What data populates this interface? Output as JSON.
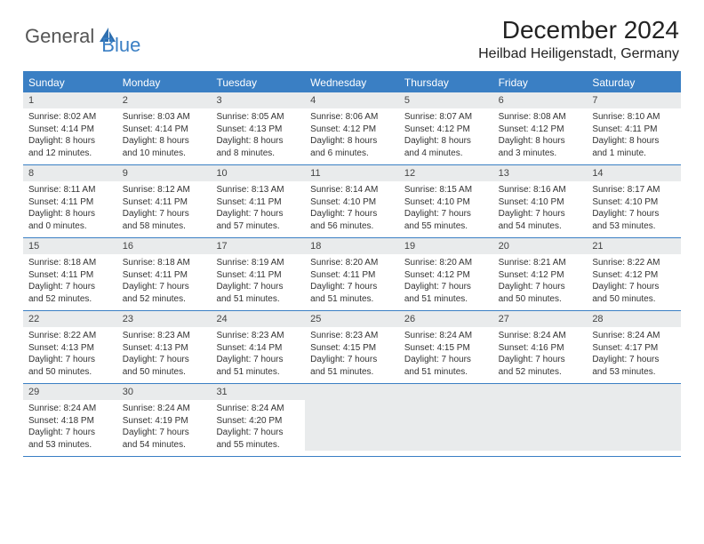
{
  "brand": {
    "part1": "General",
    "part2": "Blue"
  },
  "title": "December 2024",
  "location": "Heilbad Heiligenstadt, Germany",
  "colors": {
    "accent": "#3a7fc4",
    "header_bg": "#3a7fc4",
    "daynum_bg": "#e9ebec",
    "text": "#333333",
    "background": "#ffffff"
  },
  "dow": [
    "Sunday",
    "Monday",
    "Tuesday",
    "Wednesday",
    "Thursday",
    "Friday",
    "Saturday"
  ],
  "weeks": [
    [
      {
        "n": "1",
        "sr": "Sunrise: 8:02 AM",
        "ss": "Sunset: 4:14 PM",
        "dl": "Daylight: 8 hours and 12 minutes."
      },
      {
        "n": "2",
        "sr": "Sunrise: 8:03 AM",
        "ss": "Sunset: 4:14 PM",
        "dl": "Daylight: 8 hours and 10 minutes."
      },
      {
        "n": "3",
        "sr": "Sunrise: 8:05 AM",
        "ss": "Sunset: 4:13 PM",
        "dl": "Daylight: 8 hours and 8 minutes."
      },
      {
        "n": "4",
        "sr": "Sunrise: 8:06 AM",
        "ss": "Sunset: 4:12 PM",
        "dl": "Daylight: 8 hours and 6 minutes."
      },
      {
        "n": "5",
        "sr": "Sunrise: 8:07 AM",
        "ss": "Sunset: 4:12 PM",
        "dl": "Daylight: 8 hours and 4 minutes."
      },
      {
        "n": "6",
        "sr": "Sunrise: 8:08 AM",
        "ss": "Sunset: 4:12 PM",
        "dl": "Daylight: 8 hours and 3 minutes."
      },
      {
        "n": "7",
        "sr": "Sunrise: 8:10 AM",
        "ss": "Sunset: 4:11 PM",
        "dl": "Daylight: 8 hours and 1 minute."
      }
    ],
    [
      {
        "n": "8",
        "sr": "Sunrise: 8:11 AM",
        "ss": "Sunset: 4:11 PM",
        "dl": "Daylight: 8 hours and 0 minutes."
      },
      {
        "n": "9",
        "sr": "Sunrise: 8:12 AM",
        "ss": "Sunset: 4:11 PM",
        "dl": "Daylight: 7 hours and 58 minutes."
      },
      {
        "n": "10",
        "sr": "Sunrise: 8:13 AM",
        "ss": "Sunset: 4:11 PM",
        "dl": "Daylight: 7 hours and 57 minutes."
      },
      {
        "n": "11",
        "sr": "Sunrise: 8:14 AM",
        "ss": "Sunset: 4:10 PM",
        "dl": "Daylight: 7 hours and 56 minutes."
      },
      {
        "n": "12",
        "sr": "Sunrise: 8:15 AM",
        "ss": "Sunset: 4:10 PM",
        "dl": "Daylight: 7 hours and 55 minutes."
      },
      {
        "n": "13",
        "sr": "Sunrise: 8:16 AM",
        "ss": "Sunset: 4:10 PM",
        "dl": "Daylight: 7 hours and 54 minutes."
      },
      {
        "n": "14",
        "sr": "Sunrise: 8:17 AM",
        "ss": "Sunset: 4:10 PM",
        "dl": "Daylight: 7 hours and 53 minutes."
      }
    ],
    [
      {
        "n": "15",
        "sr": "Sunrise: 8:18 AM",
        "ss": "Sunset: 4:11 PM",
        "dl": "Daylight: 7 hours and 52 minutes."
      },
      {
        "n": "16",
        "sr": "Sunrise: 8:18 AM",
        "ss": "Sunset: 4:11 PM",
        "dl": "Daylight: 7 hours and 52 minutes."
      },
      {
        "n": "17",
        "sr": "Sunrise: 8:19 AM",
        "ss": "Sunset: 4:11 PM",
        "dl": "Daylight: 7 hours and 51 minutes."
      },
      {
        "n": "18",
        "sr": "Sunrise: 8:20 AM",
        "ss": "Sunset: 4:11 PM",
        "dl": "Daylight: 7 hours and 51 minutes."
      },
      {
        "n": "19",
        "sr": "Sunrise: 8:20 AM",
        "ss": "Sunset: 4:12 PM",
        "dl": "Daylight: 7 hours and 51 minutes."
      },
      {
        "n": "20",
        "sr": "Sunrise: 8:21 AM",
        "ss": "Sunset: 4:12 PM",
        "dl": "Daylight: 7 hours and 50 minutes."
      },
      {
        "n": "21",
        "sr": "Sunrise: 8:22 AM",
        "ss": "Sunset: 4:12 PM",
        "dl": "Daylight: 7 hours and 50 minutes."
      }
    ],
    [
      {
        "n": "22",
        "sr": "Sunrise: 8:22 AM",
        "ss": "Sunset: 4:13 PM",
        "dl": "Daylight: 7 hours and 50 minutes."
      },
      {
        "n": "23",
        "sr": "Sunrise: 8:23 AM",
        "ss": "Sunset: 4:13 PM",
        "dl": "Daylight: 7 hours and 50 minutes."
      },
      {
        "n": "24",
        "sr": "Sunrise: 8:23 AM",
        "ss": "Sunset: 4:14 PM",
        "dl": "Daylight: 7 hours and 51 minutes."
      },
      {
        "n": "25",
        "sr": "Sunrise: 8:23 AM",
        "ss": "Sunset: 4:15 PM",
        "dl": "Daylight: 7 hours and 51 minutes."
      },
      {
        "n": "26",
        "sr": "Sunrise: 8:24 AM",
        "ss": "Sunset: 4:15 PM",
        "dl": "Daylight: 7 hours and 51 minutes."
      },
      {
        "n": "27",
        "sr": "Sunrise: 8:24 AM",
        "ss": "Sunset: 4:16 PM",
        "dl": "Daylight: 7 hours and 52 minutes."
      },
      {
        "n": "28",
        "sr": "Sunrise: 8:24 AM",
        "ss": "Sunset: 4:17 PM",
        "dl": "Daylight: 7 hours and 53 minutes."
      }
    ],
    [
      {
        "n": "29",
        "sr": "Sunrise: 8:24 AM",
        "ss": "Sunset: 4:18 PM",
        "dl": "Daylight: 7 hours and 53 minutes."
      },
      {
        "n": "30",
        "sr": "Sunrise: 8:24 AM",
        "ss": "Sunset: 4:19 PM",
        "dl": "Daylight: 7 hours and 54 minutes."
      },
      {
        "n": "31",
        "sr": "Sunrise: 8:24 AM",
        "ss": "Sunset: 4:20 PM",
        "dl": "Daylight: 7 hours and 55 minutes."
      },
      {
        "empty": true
      },
      {
        "empty": true
      },
      {
        "empty": true
      },
      {
        "empty": true
      }
    ]
  ]
}
